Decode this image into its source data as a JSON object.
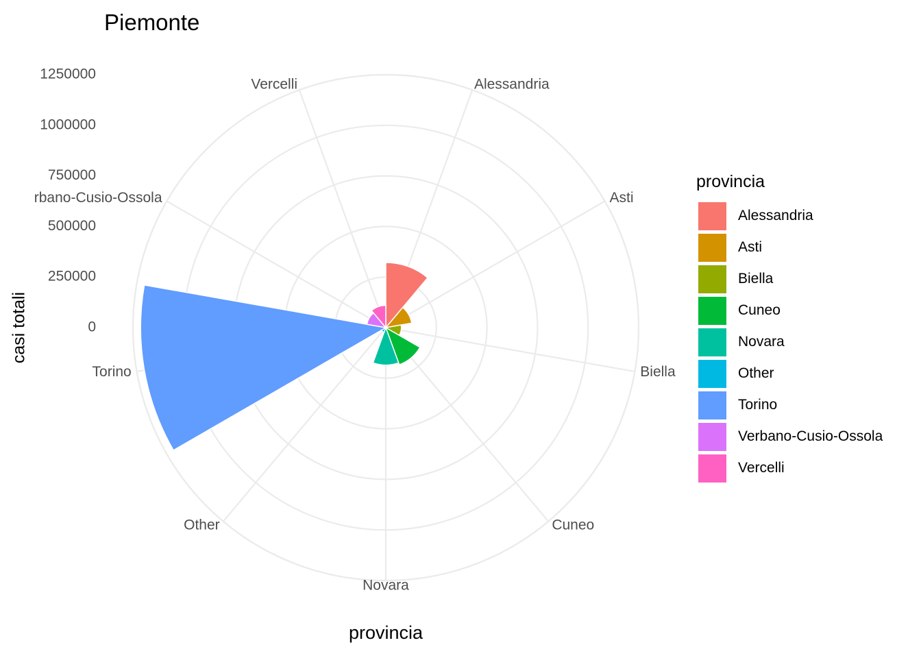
{
  "chart_data": {
    "type": "polar-bar",
    "title": "Piemonte",
    "xlabel": "provincia",
    "ylabel": "casi totali",
    "categories": [
      "Alessandria",
      "Asti",
      "Biella",
      "Cuneo",
      "Novara",
      "Other",
      "Torino",
      "Verbano-Cusio-Ossola",
      "Vercelli"
    ],
    "values": [
      322000,
      130000,
      77000,
      195000,
      185000,
      25000,
      1212000,
      95000,
      110000
    ],
    "colors": [
      "#F8766D",
      "#D39200",
      "#93AA00",
      "#00BA38",
      "#00C19F",
      "#00B9E3",
      "#619CFF",
      "#DB72FB",
      "#FF61C3"
    ],
    "ylim": [
      0,
      1250000
    ],
    "y_ticks": [
      0,
      250000,
      500000,
      750000,
      1000000,
      1250000
    ],
    "y_tick_labels": [
      "0",
      "250000",
      "500000",
      "750000",
      "1000000",
      "1250000"
    ],
    "x_tick_labels": [
      "Alessandria",
      "Asti",
      "Biella",
      "Cuneo",
      "Novara",
      "Other",
      "Torino",
      "rbano-Cusio-Ossola",
      "Vercelli"
    ],
    "grid": true,
    "legend": {
      "title": "provincia",
      "position": "right",
      "items": [
        "Alessandria",
        "Asti",
        "Biella",
        "Cuneo",
        "Novara",
        "Other",
        "Torino",
        "Verbano-Cusio-Ossola",
        "Vercelli"
      ]
    }
  }
}
